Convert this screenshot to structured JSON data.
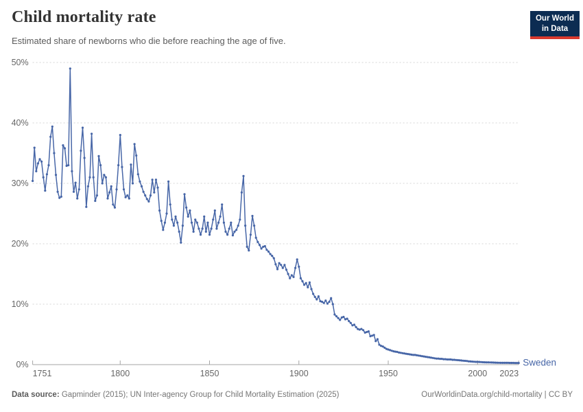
{
  "header": {
    "title": "Child mortality rate",
    "subtitle": "Estimated share of newborns who die before reaching the age of five.",
    "logo": {
      "line1": "Our World",
      "line2": "in Data",
      "bg_color": "#0c2c52",
      "accent_color": "#d9392e"
    }
  },
  "chart_data": {
    "type": "line",
    "title": "Child mortality rate",
    "xlabel": "",
    "ylabel": "",
    "xlim": [
      1751,
      2023
    ],
    "ylim": [
      0,
      50
    ],
    "grid": "horizontal-dashed",
    "legend_position": "end-of-line-label",
    "x_ticks": [
      1751,
      1800,
      1850,
      1900,
      1950,
      2000,
      2023
    ],
    "y_tick_values": [
      0,
      10,
      20,
      30,
      40,
      50
    ],
    "y_tick_labels": [
      "0%",
      "10%",
      "20%",
      "30%",
      "40%",
      "50%"
    ],
    "unit": "%",
    "series": [
      {
        "name": "Sweden",
        "color": "#4766a7",
        "start_year": 1751,
        "end_year": 2023,
        "values": [
          30.4,
          35.9,
          32.0,
          33.3,
          34.0,
          33.6,
          31.0,
          28.8,
          31.5,
          33.0,
          37.7,
          39.4,
          35.0,
          31.4,
          28.6,
          27.6,
          27.8,
          36.3,
          35.8,
          32.9,
          33.0,
          49.0,
          32.0,
          28.6,
          30.1,
          27.5,
          29.0,
          35.4,
          39.2,
          34.2,
          26.1,
          29.5,
          31.0,
          38.2,
          31.0,
          27.1,
          28.0,
          34.5,
          33.0,
          30.0,
          31.4,
          31.0,
          27.5,
          28.5,
          29.5,
          26.5,
          26.0,
          29.0,
          33.0,
          38.0,
          32.7,
          29.0,
          27.7,
          28.0,
          27.5,
          33.1,
          30.0,
          36.5,
          34.6,
          31.5,
          30.3,
          29.5,
          28.6,
          28.0,
          27.4,
          27.0,
          28.0,
          30.6,
          28.5,
          30.6,
          29.3,
          25.5,
          23.8,
          22.3,
          23.5,
          25.0,
          30.3,
          26.5,
          24.0,
          23.0,
          24.5,
          23.5,
          22.0,
          20.2,
          23.0,
          28.2,
          26.0,
          24.5,
          25.5,
          23.5,
          22.0,
          24.0,
          23.5,
          22.5,
          21.5,
          22.5,
          24.5,
          22.0,
          23.5,
          21.5,
          22.5,
          24.0,
          25.5,
          22.5,
          23.5,
          24.5,
          26.5,
          23.5,
          22.0,
          21.5,
          22.5,
          23.5,
          21.4,
          22.0,
          22.3,
          23.0,
          24.0,
          28.5,
          31.2,
          23.0,
          19.5,
          18.9,
          21.5,
          24.6,
          23.0,
          21.0,
          20.3,
          19.8,
          19.2,
          19.5,
          19.6,
          19.0,
          18.7,
          18.3,
          18.0,
          17.6,
          16.6,
          15.8,
          16.8,
          16.5,
          16.0,
          16.5,
          15.7,
          15.0,
          14.3,
          14.8,
          14.5,
          16.0,
          17.4,
          16.2,
          14.3,
          13.8,
          13.2,
          13.5,
          12.8,
          13.6,
          12.5,
          11.7,
          11.2,
          10.8,
          11.3,
          10.5,
          10.4,
          10.2,
          10.6,
          10.1,
          10.4,
          11.0,
          10.0,
          8.3,
          8.0,
          7.7,
          7.4,
          7.8,
          7.9,
          7.5,
          7.6,
          7.2,
          6.9,
          6.5,
          6.6,
          6.2,
          5.9,
          5.8,
          5.9,
          5.7,
          5.3,
          5.4,
          5.5,
          4.7,
          4.8,
          4.9,
          3.9,
          4.2,
          3.3,
          3.1,
          3.0,
          2.8,
          2.6,
          2.5,
          2.4,
          2.3,
          2.2,
          2.15,
          2.1,
          2.0,
          1.95,
          1.9,
          1.85,
          1.8,
          1.75,
          1.7,
          1.65,
          1.6,
          1.6,
          1.55,
          1.5,
          1.45,
          1.4,
          1.35,
          1.3,
          1.25,
          1.2,
          1.15,
          1.1,
          1.05,
          1.0,
          1.0,
          0.95,
          0.95,
          0.9,
          0.9,
          0.85,
          0.85,
          0.85,
          0.8,
          0.8,
          0.76,
          0.74,
          0.72,
          0.68,
          0.65,
          0.62,
          0.6,
          0.55,
          0.52,
          0.5,
          0.48,
          0.46,
          0.45,
          0.44,
          0.42,
          0.4,
          0.39,
          0.38,
          0.37,
          0.36,
          0.35,
          0.34,
          0.33,
          0.32,
          0.31,
          0.3,
          0.3,
          0.3,
          0.29,
          0.29,
          0.28,
          0.28,
          0.28,
          0.27,
          0.27,
          0.27
        ]
      }
    ]
  },
  "footer": {
    "source_label": "Data source:",
    "source_text": " Gapminder (2015); UN Inter-agency Group for Child Mortality Estimation (2025)",
    "link_text": "OurWorldinData.org/child-mortality | CC BY"
  }
}
